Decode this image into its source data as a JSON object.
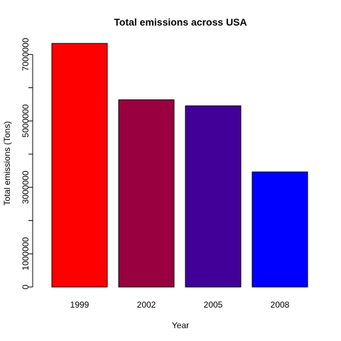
{
  "chart_data": {
    "type": "bar",
    "title": "Total emissions across USA",
    "xlabel": "Year",
    "ylabel": "Total emissions (Tons)",
    "categories": [
      "1999",
      "2002",
      "2005",
      "2008"
    ],
    "values": [
      7332967,
      5635780,
      5454703,
      3464206
    ],
    "bar_colors": [
      "#FF0000",
      "#990040",
      "#420099",
      "#0000FF"
    ],
    "ylim": [
      0,
      7400000
    ],
    "yticks": [
      0,
      1000000,
      2000000,
      3000000,
      4000000,
      5000000,
      6000000,
      7000000
    ],
    "ytick_labels": [
      "0",
      "1000000",
      "",
      "3000000",
      "",
      "5000000",
      "",
      "7000000"
    ],
    "grid": false,
    "legend": "none"
  }
}
